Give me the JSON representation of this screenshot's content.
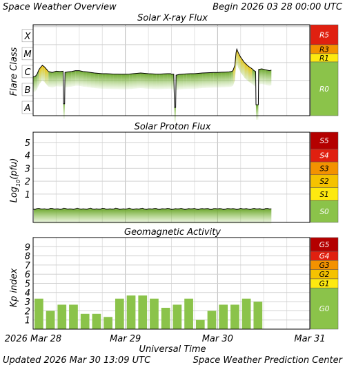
{
  "header": {
    "title": "Space Weather Overview",
    "begin": "Begin 2026 03 28 00:00 UTC"
  },
  "footer": {
    "updated": "Updated 2026 Mar 30 13:09 UTC",
    "credit": "Space Weather Prediction Center"
  },
  "colors": {
    "green": "#8bc34a",
    "green_dark": "#6ea830",
    "yellow": "#fde910",
    "gold": "#f5c200",
    "orange": "#f39200",
    "red_orange": "#f05a00",
    "red": "#e02010",
    "red_dark": "#b40000"
  },
  "chart_data": [
    {
      "id": "xray",
      "type": "line",
      "title": "Solar X-ray Flux",
      "ylabel": "Flare Class",
      "y_categories": [
        "A",
        "B",
        "C",
        "M",
        "X"
      ],
      "log_scale": true,
      "grid": true,
      "scale": [
        {
          "label": "R0",
          "color": "#8bc34a"
        },
        {
          "label": "R1",
          "color": "#fde910"
        },
        {
          "label": "R3",
          "color": "#f39200"
        },
        {
          "label": "R5",
          "color": "#e02010"
        }
      ],
      "x": [
        0,
        0.1,
        0.2,
        0.3,
        0.4,
        0.5,
        0.6,
        0.62,
        0.7,
        0.8,
        0.9,
        1.0,
        1.1,
        1.12,
        1.2,
        1.3,
        1.4,
        1.5,
        1.6,
        1.7,
        1.8,
        1.9,
        2.0,
        2.1,
        2.2,
        2.3,
        2.4,
        2.5,
        2.6,
        2.7,
        2.72,
        2.8,
        2.9,
        3.0,
        3.1,
        3.2,
        3.3,
        3.4,
        3.42,
        3.5,
        3.6,
        3.7,
        3.8,
        3.82,
        3.9,
        4.0,
        4.1,
        4.2,
        4.3,
        4.35,
        4.4,
        4.5,
        4.55,
        4.6,
        4.7,
        4.8,
        4.9,
        5.0,
        5.1,
        5.2,
        5.3,
        5.4,
        5.5,
        5.6,
        5.7,
        5.8,
        5.9,
        6.0,
        6.1,
        6.2,
        6.3,
        6.4,
        6.5,
        6.6,
        6.7,
        6.8,
        6.85,
        6.9,
        7.0,
        7.1,
        7.2,
        7.3,
        7.4,
        7.5,
        7.6,
        7.62,
        7.7,
        7.8,
        7.9,
        8.0,
        8.1,
        8.2,
        8.3,
        8.4,
        8.5,
        8.6,
        8.7,
        8.8,
        8.9,
        9.0,
        9.1,
        9.2,
        9.3,
        9.4,
        9.5,
        9.6,
        9.7,
        9.8,
        9.9,
        10.0,
        10.1,
        10.2,
        10.3,
        10.4,
        10.5,
        10.6,
        10.7,
        10.8,
        10.9,
        11.0,
        11.1,
        11.2,
        11.3,
        11.4,
        11.5,
        11.6,
        11.7,
        11.8,
        11.82,
        11.9,
        12.0,
        12.1,
        12.2,
        12.3,
        12.4,
        12.5,
        12.6,
        12.7,
        12.8,
        12.82,
        12.9,
        13.0,
        13.1,
        13.2,
        13.3,
        13.4,
        13.5,
        13.6,
        13.7,
        13.8,
        13.9,
        14.0,
        14.1,
        14.2,
        14.3,
        14.4,
        14.5,
        14.6,
        14.7,
        14.8,
        14.9,
        15.0,
        15.1,
        15.2,
        15.3,
        15.4,
        15.5,
        15.6,
        15.7,
        15.8,
        15.9,
        16.0,
        16.1,
        16.2,
        16.3,
        16.4,
        16.5,
        16.6,
        16.7,
        16.8,
        16.9,
        17.0,
        17.1,
        17.2,
        17.3,
        17.4,
        17.5,
        17.6,
        17.7,
        17.8,
        17.9,
        18.0,
        18.1,
        18.2,
        18.3,
        18.4,
        18.5,
        18.6,
        18.7,
        18.8,
        18.9,
        19.0,
        19.1,
        19.2,
        19.3,
        19.4,
        19.5,
        19.6,
        19.7,
        19.8,
        19.9,
        20.0,
        20.1,
        20.2,
        20.3,
        20.4,
        20.5,
        20.6,
        20.7,
        20.8,
        20.9,
        21.0,
        21.1,
        21.2,
        21.3,
        21.4,
        21.5,
        21.6,
        21.7,
        21.8,
        21.9,
        22.0,
        22.1,
        22.2,
        22.3,
        22.4,
        22.5,
        22.6,
        22.7,
        22.8,
        22.9,
        23.0,
        23.1,
        23.2,
        23.3,
        23.4,
        23.5,
        23.6,
        23.7,
        23.8,
        23.9,
        24.0,
        24.1,
        24.2,
        24.3,
        24.4,
        24.5,
        24.6,
        24.7,
        24.8,
        24.9,
        25.0,
        25.1,
        25.2,
        25.3,
        25.4,
        25.5,
        25.6,
        25.7,
        25.8,
        25.9,
        26.0,
        26.1,
        26.2,
        26.3,
        26.4,
        26.5,
        26.6,
        26.7,
        26.8,
        26.9,
        27.0,
        27.1,
        27.2,
        27.3,
        27.4,
        27.5,
        27.6,
        27.7,
        27.8,
        27.9,
        28.0,
        28.1,
        28.2,
        28.3,
        28.4,
        28.5,
        28.6,
        28.7,
        28.8,
        28.9,
        29.0,
        29.1,
        29.2,
        29.3,
        29.4,
        29.5,
        29.6,
        29.7,
        29.8,
        29.9,
        30.0,
        30.1,
        30.2,
        30.3,
        30.4,
        30.5,
        30.6,
        30.7,
        30.8,
        30.9,
        31.0,
        31.1,
        31.2,
        31.3,
        31.4,
        31.5,
        31.6,
        31.7,
        31.8,
        31.9,
        32.0,
        32.1,
        32.2,
        32.3,
        32.4,
        32.5,
        32.6,
        32.7,
        32.8,
        32.9,
        33.0,
        33.1,
        33.2,
        33.3,
        33.4,
        33.5,
        33.6,
        33.7,
        33.8,
        33.9,
        34.0,
        34.1,
        34.2,
        34.3,
        34.4,
        34.5,
        34.6,
        34.7,
        34.8,
        34.9,
        35.0,
        35.1,
        35.2,
        35.3,
        35.4,
        35.5,
        35.6,
        35.7,
        35.8,
        35.9,
        36.0,
        36.1,
        36.2,
        36.3,
        36.4,
        36.5,
        36.6,
        36.7,
        36.8,
        36.9,
        37.0,
        37.1,
        37.2,
        37.3,
        37.4,
        37.5,
        37.6,
        37.7,
        37.8,
        37.9,
        38.0,
        38.1,
        38.2,
        38.3,
        38.4,
        38.5,
        38.6,
        38.7,
        38.8,
        38.9,
        39.0,
        39.1,
        39.2,
        39.3,
        39.4,
        39.5,
        39.6,
        39.7,
        39.8,
        39.9,
        40.0,
        40.1,
        40.2,
        40.3,
        40.4,
        40.5,
        40.6,
        40.7,
        40.8,
        40.9,
        41.0,
        41.1,
        41.2,
        41.3,
        41.4,
        41.5,
        41.6,
        41.7,
        41.8,
        41.9,
        42.0,
        42.1,
        42.2,
        42.3,
        42.4,
        42.5,
        42.6,
        42.7,
        42.8,
        42.9,
        43.0,
        43.1,
        43.2,
        43.3,
        43.4,
        43.5,
        43.6,
        43.7,
        43.8,
        43.9,
        44.0,
        44.1,
        44.2,
        44.3,
        44.4,
        44.5,
        44.6,
        44.7,
        44.8,
        44.9,
        45.0,
        45.1,
        45.2,
        45.3,
        45.4,
        45.5,
        45.6,
        45.7,
        45.8,
        45.9,
        46.0,
        46.1,
        46.2,
        46.3,
        46.4,
        46.5,
        46.6,
        46.7,
        46.8,
        46.9,
        47.0,
        47.1,
        47.2,
        47.3,
        47.4,
        47.5,
        47.6,
        47.7,
        47.8,
        47.9,
        48.0,
        48.1,
        48.2,
        48.3,
        48.4,
        48.5,
        48.6,
        48.7,
        48.8,
        48.9,
        49.0,
        49.1,
        49.2,
        49.3,
        49.4,
        49.5,
        49.6,
        49.7,
        49.8,
        49.9,
        50.0,
        50.1,
        50.2,
        50.3,
        50.4,
        50.5,
        50.6,
        50.7,
        50.8,
        50.9,
        51.0,
        51.1,
        51.2,
        51.3,
        51.4,
        51.5,
        51.6,
        51.7,
        51.8,
        51.9,
        52.0,
        52.1,
        52.2,
        52.3,
        52.4,
        52.5,
        52.6,
        52.7,
        52.8,
        52.9,
        53.0,
        53.1,
        53.2,
        53.3,
        53.4,
        53.5,
        53.6,
        53.7,
        53.8,
        53.9,
        54.0,
        54.1,
        54.2,
        54.3,
        54.4,
        54.5,
        54.6,
        54.7,
        54.8,
        54.9,
        55.0,
        55.1,
        55.2,
        55.3,
        55.4,
        55.5,
        55.6,
        55.7,
        55.8,
        55.9,
        56.0,
        56.1,
        56.2,
        56.3,
        56.4,
        56.5,
        56.6,
        56.7,
        56.8,
        56.9,
        57.0,
        57.1,
        57.2,
        57.3,
        57.4,
        57.5,
        57.6,
        57.7,
        57.8,
        57.9,
        58.0,
        58.1,
        58.2,
        58.3,
        58.4,
        58.5,
        58.6,
        58.7,
        58.8,
        58.9,
        59.0,
        59.1,
        59.2,
        59.3,
        59.4,
        59.5,
        59.6,
        59.7,
        59.8,
        59.9,
        60.0,
        60.1,
        60.2,
        60.3,
        60.4,
        60.5,
        60.6,
        60.7,
        60.8,
        60.9,
        61.0,
        61.1,
        61.2,
        61.3,
        61.4,
        61.5,
        61.6,
        61.7,
        61.8,
        61.9,
        62.0,
        62.1,
        62.2,
        62.3,
        62.4,
        62.5,
        62.6,
        62.7,
        62.8,
        62.9,
        63.0,
        63.1,
        63.2,
        63.3,
        63.4,
        63.5,
        63.6,
        63.7,
        63.8,
        63.9,
        64.0,
        64.1,
        64.2,
        64.3,
        64.4,
        64.5,
        64.6,
        64.7,
        64.8,
        64.9,
        65.0,
        65.1,
        65.2,
        65.3,
        65.4,
        65.5,
        65.6,
        65.7,
        65.8,
        65.9,
        66.0,
        66.1,
        66.2,
        66.3,
        66.4,
        66.5,
        66.6,
        66.7,
        66.8,
        66.9,
        67.0,
        67.1,
        67.2,
        67.3,
        67.4,
        67.5,
        67.6,
        67.7,
        67.8,
        67.9,
        68.0,
        68.1,
        68.2,
        68.3,
        68.4,
        68.5,
        68.6,
        68.7,
        68.8,
        68.9,
        69.0
      ],
      "note_x": "hours",
      "y_profile": [
        [
          0,
          1.7
        ],
        [
          0.5,
          1.72
        ],
        [
          1.0,
          1.85
        ],
        [
          1.5,
          2.1
        ],
        [
          2.0,
          2.25
        ],
        [
          2.4,
          2.35
        ],
        [
          3.0,
          2.25
        ],
        [
          4.0,
          2.0
        ],
        [
          5.0,
          1.95
        ],
        [
          6.0,
          2.02
        ],
        [
          7.0,
          2.0
        ],
        [
          7.8,
          2.02
        ],
        [
          7.9,
          0.2
        ],
        [
          8.2,
          0.2
        ],
        [
          8.3,
          1.95
        ],
        [
          9.0,
          1.98
        ],
        [
          10.0,
          2.0
        ],
        [
          11.0,
          2.05
        ],
        [
          12.0,
          2.05
        ],
        [
          13.0,
          2.0
        ],
        [
          14.0,
          1.98
        ],
        [
          15.0,
          1.95
        ],
        [
          16.0,
          1.92
        ],
        [
          17.0,
          1.9
        ],
        [
          18.0,
          1.88
        ],
        [
          19.0,
          1.88
        ],
        [
          20.0,
          1.87
        ],
        [
          21.0,
          1.86
        ],
        [
          22.0,
          1.86
        ],
        [
          23.0,
          1.85
        ],
        [
          24.0,
          1.85
        ],
        [
          25.0,
          1.86
        ],
        [
          26.0,
          1.88
        ],
        [
          27.0,
          1.9
        ],
        [
          28.0,
          1.92
        ],
        [
          29.0,
          1.9
        ],
        [
          30.0,
          1.88
        ],
        [
          31.0,
          1.87
        ],
        [
          32.0,
          1.86
        ],
        [
          33.0,
          1.86
        ],
        [
          34.0,
          1.87
        ],
        [
          35.0,
          1.88
        ],
        [
          35.8,
          1.88
        ],
        [
          36.0,
          1.85
        ],
        [
          36.6,
          1.85
        ],
        [
          36.8,
          0.0
        ],
        [
          37.1,
          0.0
        ],
        [
          37.2,
          1.8
        ],
        [
          38.0,
          1.84
        ],
        [
          39.0,
          1.86
        ],
        [
          40.0,
          1.87
        ],
        [
          41.0,
          1.88
        ],
        [
          42.0,
          1.88
        ],
        [
          43.0,
          1.9
        ],
        [
          44.0,
          1.92
        ],
        [
          45.0,
          1.93
        ],
        [
          46.0,
          1.94
        ],
        [
          47.0,
          1.95
        ],
        [
          48.0,
          1.95
        ],
        [
          49.0,
          1.96
        ],
        [
          50.0,
          1.97
        ],
        [
          51.0,
          1.98
        ],
        [
          51.6,
          2.0
        ],
        [
          52.0,
          2.05
        ],
        [
          52.5,
          2.35
        ],
        [
          52.8,
          3.05
        ],
        [
          53.0,
          3.25
        ],
        [
          53.4,
          3.05
        ],
        [
          54.0,
          2.8
        ],
        [
          55.0,
          2.5
        ],
        [
          56.0,
          2.3
        ],
        [
          57.0,
          2.15
        ],
        [
          57.5,
          2.05
        ],
        [
          57.9,
          2.0
        ],
        [
          58.0,
          0.15
        ],
        [
          58.6,
          0.15
        ],
        [
          58.7,
          2.12
        ],
        [
          59.5,
          2.15
        ],
        [
          60.5,
          2.1
        ],
        [
          61.5,
          2.05
        ],
        [
          62.0,
          2.08
        ]
      ]
    },
    {
      "id": "proton",
      "type": "line",
      "title": "Solar Proton Flux",
      "ylabel": "Log₁₀(pfu)",
      "ylabel_main": "Log",
      "ylabel_sub": "10",
      "ylabel_tail": "(pfu)",
      "y_ticks": [
        "1",
        "2",
        "3",
        "4",
        "5"
      ],
      "ylim": [
        -1.2,
        5.8
      ],
      "grid": true,
      "scale": [
        {
          "label": "S0",
          "color": "#8bc34a"
        },
        {
          "label": "S1",
          "color": "#fde910"
        },
        {
          "label": "S2",
          "color": "#f5c200"
        },
        {
          "label": "S3",
          "color": "#f39200"
        },
        {
          "label": "S4",
          "color": "#e02010"
        },
        {
          "label": "S5",
          "color": "#b40000"
        }
      ],
      "baseline": -0.15,
      "end_hour": 62
    },
    {
      "id": "kp",
      "type": "bar",
      "title": "Geomagnetic Activity",
      "ylabel": "Kp index",
      "y_ticks": [
        "1",
        "2",
        "3",
        "4",
        "5",
        "6",
        "7",
        "8",
        "9"
      ],
      "ylim": [
        0,
        10
      ],
      "grid": true,
      "scale": [
        {
          "label": "G0",
          "color": "#8bc34a"
        },
        {
          "label": "G1",
          "color": "#fde910"
        },
        {
          "label": "G2",
          "color": "#f5c200"
        },
        {
          "label": "G3",
          "color": "#f39200"
        },
        {
          "label": "G4",
          "color": "#e02010"
        },
        {
          "label": "G5",
          "color": "#b40000"
        }
      ],
      "values": [
        3.33,
        2.0,
        2.67,
        2.67,
        1.67,
        1.67,
        1.33,
        3.33,
        3.67,
        3.67,
        3.33,
        2.33,
        2.67,
        3.33,
        1.0,
        2.0,
        2.67,
        2.67,
        3.33,
        3.0
      ]
    }
  ],
  "x_axis": {
    "label": "Universal Time",
    "ticks": [
      "2026 Mar 28",
      "Mar 29",
      "Mar 30",
      "Mar 31"
    ],
    "range_hours": [
      0,
      72
    ]
  }
}
